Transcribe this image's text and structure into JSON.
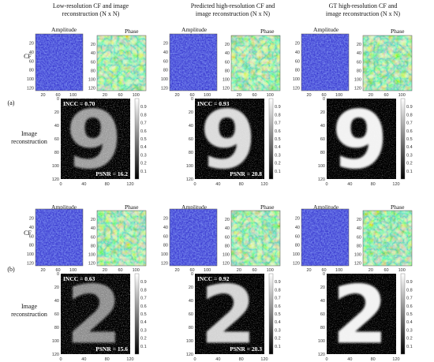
{
  "columns": [
    {
      "title_line1": "Low-resolution  CF and image",
      "title_line2": "reconstruction  (N x N)"
    },
    {
      "title_line1": "Predicted high-resolution  CF and",
      "title_line2": "image  reconstruction (N x N)"
    },
    {
      "title_line1": "GT high-resolution  CF and",
      "title_line2": "image reconstruction  (N x N)"
    }
  ],
  "labels": {
    "amplitude": "Amplitude",
    "phase": "Phase",
    "cf_row": "CF",
    "image_row_line1": "Image",
    "image_row_line2": "reconstruction"
  },
  "panels": [
    {
      "id": "(a)",
      "digit": "9",
      "metrics": [
        {
          "incc": "INCC = 0.70",
          "psnr": "PSNR = 16.2"
        },
        {
          "incc": "INCC = 0.93",
          "psnr": "PSNR = 20.8"
        },
        {
          "incc": "",
          "psnr": ""
        }
      ]
    },
    {
      "id": "(b)",
      "digit": "2",
      "metrics": [
        {
          "incc": "INCC = 0.63",
          "psnr": "PSNR = 15.6"
        },
        {
          "incc": "INCC = 0.92",
          "psnr": "PSNR = 20.3"
        },
        {
          "incc": "",
          "psnr": ""
        }
      ]
    }
  ],
  "axes": {
    "cf_ticks": [
      "20",
      "40",
      "60",
      "80",
      "100",
      "120"
    ],
    "img_yticks": [
      "0",
      "20",
      "40",
      "60",
      "80",
      "100",
      "120"
    ],
    "img_xticks": [
      "0",
      "40",
      "80",
      "120"
    ],
    "colorbar_ticks": [
      "0.1",
      "0.2",
      "0.3",
      "0.4",
      "0.5",
      "0.6",
      "0.7",
      "0.8",
      "0.9"
    ]
  },
  "colors": {
    "cf_blue": "#3b3bd0",
    "phase_green": "#3cbf9a",
    "phase_yellow": "#e6e03a",
    "img_bg": "#000000"
  }
}
